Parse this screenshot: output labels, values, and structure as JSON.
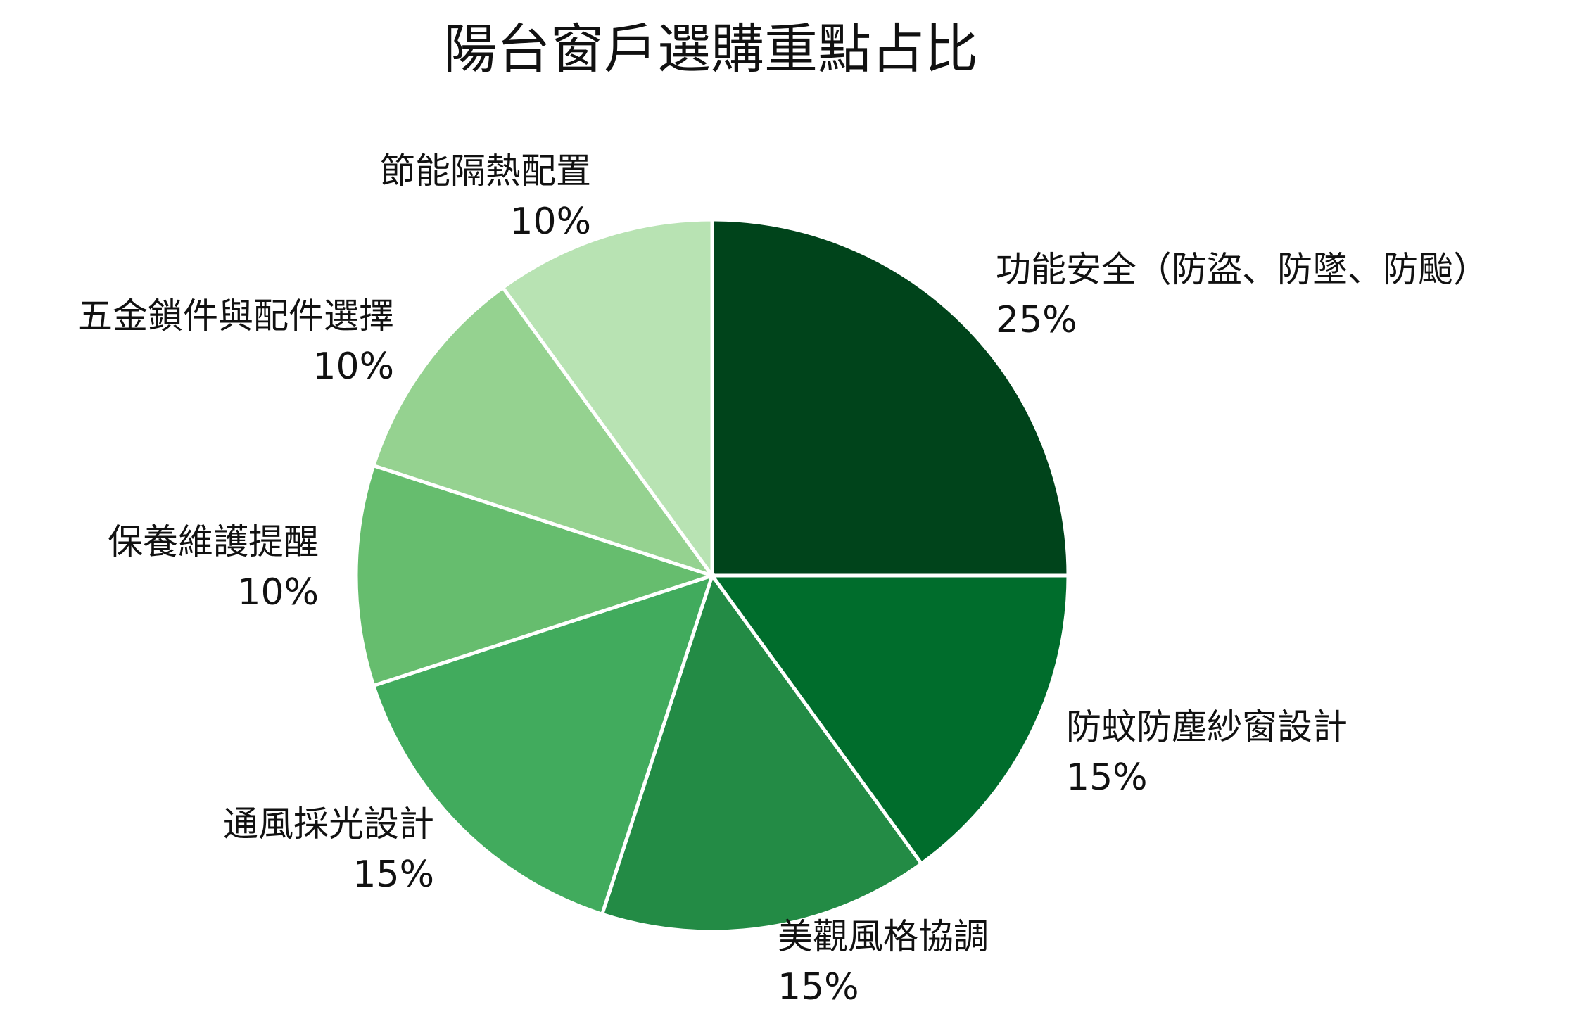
{
  "chart_data": {
    "type": "pie",
    "title": "陽台窗戶選購重點占比",
    "start_angle": "12 o'clock",
    "direction": "clockwise",
    "slices": [
      {
        "label": "功能安全（防盜、防墜、防颱）",
        "value": 25,
        "value_label": "25%",
        "color": "#00441b"
      },
      {
        "label": "防蚊防塵紗窗設計",
        "value": 15,
        "value_label": "15%",
        "color": "#006d2c"
      },
      {
        "label": "美觀風格協調",
        "value": 15,
        "value_label": "15%",
        "color": "#238b45"
      },
      {
        "label": "通風採光設計",
        "value": 15,
        "value_label": "15%",
        "color": "#41ab5d"
      },
      {
        "label": "保養維護提醒",
        "value": 10,
        "value_label": "10%",
        "color": "#66bd6e"
      },
      {
        "label": "五金鎖件與配件選擇",
        "value": 10,
        "value_label": "10%",
        "color": "#95d290"
      },
      {
        "label": "節能隔熱配置",
        "value": 10,
        "value_label": "10%",
        "color": "#b8e3b3"
      }
    ]
  }
}
